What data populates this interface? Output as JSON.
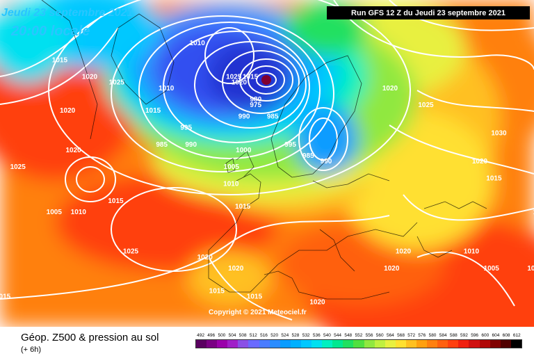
{
  "header": {
    "date": "Jeudi 23 septembre 2021",
    "time": "20:00 locale",
    "run": "Run GFS 12 Z du Jeudi 23 septembre 2021"
  },
  "copyright": "Copyright © 2021 Meteociel.fr",
  "footer": {
    "title": "Géop. Z500 & pression au sol",
    "step": "(+ 6h)"
  },
  "legend": {
    "values": [
      "492",
      "496",
      "500",
      "504",
      "508",
      "512",
      "516",
      "520",
      "524",
      "528",
      "532",
      "536",
      "540",
      "544",
      "548",
      "552",
      "556",
      "560",
      "564",
      "568",
      "572",
      "576",
      "580",
      "584",
      "588",
      "592",
      "596",
      "600",
      "604",
      "608",
      "612"
    ],
    "colors": [
      "#5a0060",
      "#7a0083",
      "#9a00aa",
      "#a020c8",
      "#8a50e6",
      "#6a6aff",
      "#4a7cff",
      "#2a8cff",
      "#0a9cff",
      "#00b0ff",
      "#00c8ff",
      "#00e0f0",
      "#00f0c0",
      "#00e890",
      "#20e060",
      "#50e040",
      "#90e840",
      "#c0f040",
      "#e8f040",
      "#ffe030",
      "#ffc020",
      "#ffa010",
      "#ff8010",
      "#ff6010",
      "#ff4010",
      "#f02010",
      "#d01010",
      "#b00808",
      "#800000",
      "#500000",
      "#000000"
    ]
  },
  "pressure_labels": [
    {
      "value": "1010",
      "lon": -3,
      "lat": 76
    },
    {
      "value": "1015",
      "lon": -28,
      "lat": 73
    },
    {
      "value": "1020",
      "lon": -22,
      "lat": 70
    },
    {
      "value": "1020",
      "lon": -25,
      "lat": 64
    },
    {
      "value": "1025",
      "lon": -17,
      "lat": 69
    },
    {
      "value": "1010",
      "lon": -8,
      "lat": 68
    },
    {
      "value": "1025",
      "lon": 4,
      "lat": 70
    },
    {
      "value": "1015",
      "lon": 7,
      "lat": 70
    },
    {
      "value": "1020",
      "lon": 5,
      "lat": 69
    },
    {
      "value": "1015",
      "lon": -10,
      "lat": 64
    },
    {
      "value": "1020",
      "lon": -23,
      "lat": 57
    },
    {
      "value": "1025",
      "lon": -32,
      "lat": 54
    },
    {
      "value": "995",
      "lon": -4,
      "lat": 61
    },
    {
      "value": "985",
      "lon": -8,
      "lat": 58
    },
    {
      "value": "990",
      "lon": -3,
      "lat": 58
    },
    {
      "value": "980",
      "lon": 8,
      "lat": 66
    },
    {
      "value": "975",
      "lon": 8,
      "lat": 65
    },
    {
      "value": "990",
      "lon": 6,
      "lat": 63
    },
    {
      "value": "985",
      "lon": 11,
      "lat": 63
    },
    {
      "value": "1000",
      "lon": 6,
      "lat": 57
    },
    {
      "value": "995",
      "lon": 14,
      "lat": 58
    },
    {
      "value": "1005",
      "lon": 4,
      "lat": 54
    },
    {
      "value": "1010",
      "lon": 4,
      "lat": 51
    },
    {
      "value": "985",
      "lon": 17,
      "lat": 56
    },
    {
      "value": "990",
      "lon": 20,
      "lat": 55
    },
    {
      "value": "1015",
      "lon": -15,
      "lat": 48
    },
    {
      "value": "1005",
      "lon": -25,
      "lat": 46
    },
    {
      "value": "1010",
      "lon": -21,
      "lat": 46
    },
    {
      "value": "1015",
      "lon": 6,
      "lat": 47
    },
    {
      "value": "1025",
      "lon": -12,
      "lat": 39
    },
    {
      "value": "1015",
      "lon": -32,
      "lat": 31
    },
    {
      "value": "1020",
      "lon": 0,
      "lat": 38
    },
    {
      "value": "1020",
      "lon": 5,
      "lat": 36
    },
    {
      "value": "1015",
      "lon": 2,
      "lat": 32
    },
    {
      "value": "1015",
      "lon": 8,
      "lat": 31
    },
    {
      "value": "1020",
      "lon": 18,
      "lat": 30
    },
    {
      "value": "1020",
      "lon": 32,
      "lat": 68
    },
    {
      "value": "1025",
      "lon": 38,
      "lat": 65
    },
    {
      "value": "1030",
      "lon": 50,
      "lat": 60
    },
    {
      "value": "1020",
      "lon": 46,
      "lat": 55
    },
    {
      "value": "1015",
      "lon": 48,
      "lat": 52
    },
    {
      "value": "1005",
      "lon": 55,
      "lat": 46
    },
    {
      "value": "1005",
      "lon": 60,
      "lat": 45
    },
    {
      "value": "1005",
      "lon": 66,
      "lat": 40
    },
    {
      "value": "1010",
      "lon": 43,
      "lat": 39
    },
    {
      "value": "1020",
      "lon": 32,
      "lat": 39
    },
    {
      "value": "1020",
      "lon": 30,
      "lat": 36
    },
    {
      "value": "1005",
      "lon": 46,
      "lat": 36
    },
    {
      "value": "1005",
      "lon": 53,
      "lat": 36
    }
  ]
}
